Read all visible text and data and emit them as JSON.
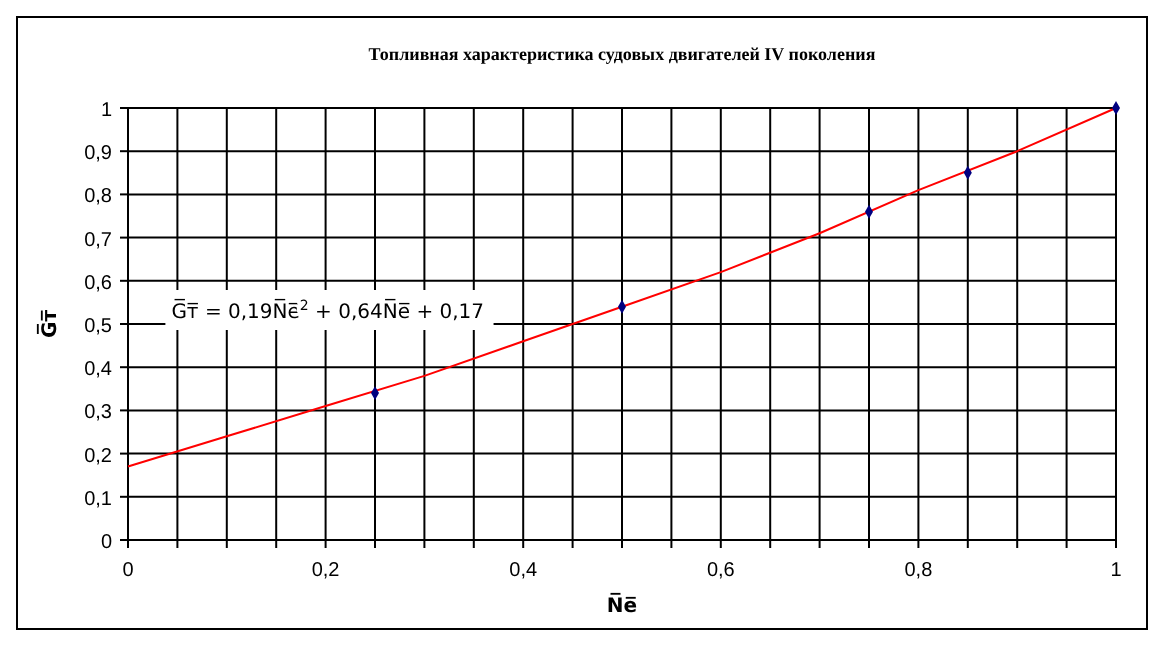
{
  "chart_data": {
    "type": "scatter",
    "title": "Топливная характеристика судовых двигателей IV поколения",
    "xlabel": "N̅e̅",
    "ylabel": "G̅т̅",
    "annotations": [
      "G̅т̅ = 0,19N̅e̅$^{2}$ + 0,64N̅e̅ + 0,17"
    ],
    "x": [
      0.25,
      0.5,
      0.75,
      0.85,
      1
    ],
    "series": [
      {
        "color": "#000080",
        "values": [
          0.34,
          0.54,
          0.76,
          0.85,
          1
        ],
        "marker": "diamond"
      },
      {
        "type": "line",
        "color": "#ff0000",
        "x": [
          0,
          0.1,
          0.2,
          0.3,
          0.4,
          0.5,
          0.6,
          0.7,
          0.8,
          0.9,
          1
        ],
        "values": [
          0.17,
          0.24,
          0.31,
          0.38,
          0.46,
          0.54,
          0.62,
          0.71,
          0.81,
          0.9,
          1
        ],
        "marker": "none",
        "line_style": "solid"
      }
    ],
    "xlim": [
      0,
      1
    ],
    "ylim": [
      0,
      1
    ],
    "xticks": [
      0,
      {
        "value": 0.05,
        "label": null
      },
      {
        "value": 0.1,
        "label": null
      },
      {
        "value": 0.15,
        "label": null
      },
      {
        "value": 0.2,
        "label": "0,2"
      },
      {
        "value": 0.25,
        "label": null
      },
      {
        "value": 0.3,
        "label": null
      },
      {
        "value": 0.35,
        "label": null
      },
      {
        "value": 0.4,
        "label": "0,4"
      },
      {
        "value": 0.45,
        "label": null
      },
      {
        "value": 0.5,
        "label": null
      },
      {
        "value": 0.55,
        "label": null
      },
      {
        "value": 0.6,
        "label": "0,6"
      },
      {
        "value": 0.65,
        "label": null
      },
      {
        "value": 0.7,
        "label": null
      },
      {
        "value": 0.75,
        "label": null
      },
      {
        "value": 0.8,
        "label": "0,8"
      },
      {
        "value": 0.85,
        "label": null
      },
      {
        "value": 0.9,
        "label": null
      },
      {
        "value": 0.95,
        "label": null
      },
      1
    ],
    "yticks": [
      0,
      {
        "value": 0.1,
        "label": "0,1"
      },
      {
        "value": 0.2,
        "label": "0,2"
      },
      {
        "value": 0.3,
        "label": "0,3"
      },
      {
        "value": 0.4,
        "label": "0,4"
      },
      {
        "value": 0.5,
        "label": "0,5"
      },
      {
        "value": 0.6,
        "label": "0,6"
      },
      {
        "value": 0.7,
        "label": "0,7"
      },
      {
        "value": 0.8,
        "label": "0,8"
      },
      {
        "value": 0.9,
        "label": "0,9"
      },
      1
    ],
    "grid": true
  }
}
